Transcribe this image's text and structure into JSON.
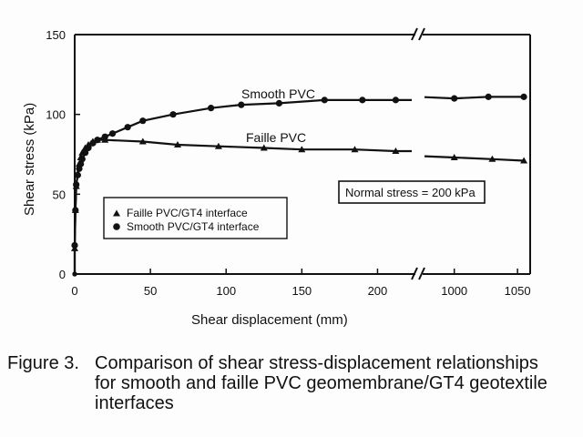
{
  "chart_data": {
    "type": "line",
    "xlabel": "Shear displacement (mm)",
    "ylabel": "Shear stress (kPa)",
    "ylim": [
      0,
      150
    ],
    "y_ticks": [
      "0",
      "50",
      "100",
      "150"
    ],
    "x_ticks_left": [
      "0",
      "50",
      "100",
      "150",
      "200"
    ],
    "x_ticks_right": [
      "1000",
      "1050"
    ],
    "x_segments": [
      {
        "range": [
          0,
          225
        ]
      },
      {
        "range": [
          975,
          1060
        ]
      }
    ],
    "grid": false,
    "legend_position": "bottom-left",
    "annotation": "Normal stress = 200 kPa",
    "series": [
      {
        "name": "Smooth PVC/GT4 interface",
        "curve_label": "Smooth PVC",
        "marker": "circle",
        "x": [
          0,
          0,
          0.5,
          1,
          2,
          3,
          4,
          5,
          7,
          9,
          12,
          15,
          20,
          25,
          35,
          45,
          65,
          90,
          110,
          135,
          165,
          190,
          212,
          1000,
          1027,
          1055
        ],
        "y": [
          0,
          18,
          40,
          56,
          62,
          66,
          69,
          72,
          76,
          79,
          82,
          84,
          86,
          88,
          92,
          96,
          100,
          104,
          106,
          107,
          109,
          109,
          109,
          110,
          111,
          111
        ]
      },
      {
        "name": "Faille PVC/GT4 interface",
        "curve_label": "Faille PVC",
        "marker": "triangle",
        "x": [
          0,
          0,
          0.5,
          1,
          2,
          3,
          4,
          5,
          7,
          9,
          12,
          15,
          20,
          45,
          68,
          95,
          125,
          150,
          185,
          212,
          1000,
          1030,
          1055
        ],
        "y": [
          0,
          16,
          40,
          55,
          63,
          69,
          73,
          76,
          79,
          81,
          83,
          84,
          84,
          83,
          81,
          80,
          79,
          78,
          78,
          77,
          73,
          72,
          71
        ]
      }
    ]
  },
  "caption": {
    "label": "Figure 3.",
    "lines": [
      "Comparison of shear stress-displacement relationships",
      "for smooth and faille PVC geomembrane/GT4 geotextile",
      "interfaces"
    ]
  }
}
